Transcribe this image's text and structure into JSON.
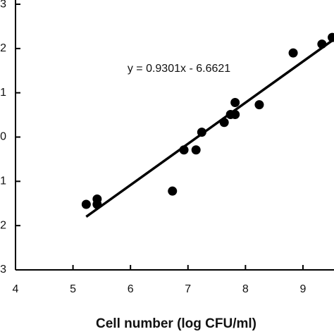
{
  "chart_data": {
    "type": "scatter",
    "x_label": "Cell number (log CFU/ml)",
    "annotation": "y = 0.9301x - 6.6621",
    "x": [
      5.23,
      5.42,
      5.42,
      6.73,
      6.93,
      7.14,
      7.24,
      7.63,
      7.74,
      7.82,
      7.82,
      8.24,
      8.83,
      9.33,
      9.51
    ],
    "values": [
      -1.52,
      -1.4,
      -1.52,
      -1.22,
      -0.29,
      -0.29,
      0.11,
      0.33,
      0.51,
      0.51,
      0.78,
      0.73,
      1.9,
      2.1,
      2.25
    ],
    "color": "#000000",
    "fit_line": {
      "x": [
        5.23,
        9.54
      ],
      "y": [
        -1.8,
        2.21
      ]
    },
    "xlim": [
      4,
      9.54
    ],
    "ylim": [
      -3,
      3.08
    ],
    "xticks": [
      4,
      5,
      6,
      7,
      8,
      9
    ],
    "yticks": [
      {
        "value": 3,
        "label": "3"
      },
      {
        "value": 2,
        "label": "2"
      },
      {
        "value": 1,
        "label": "1"
      },
      {
        "value": 0,
        "label": "0"
      },
      {
        "value": -1,
        "label": "1"
      },
      {
        "value": -2,
        "label": "2"
      },
      {
        "value": -3,
        "label": "3"
      }
    ]
  }
}
